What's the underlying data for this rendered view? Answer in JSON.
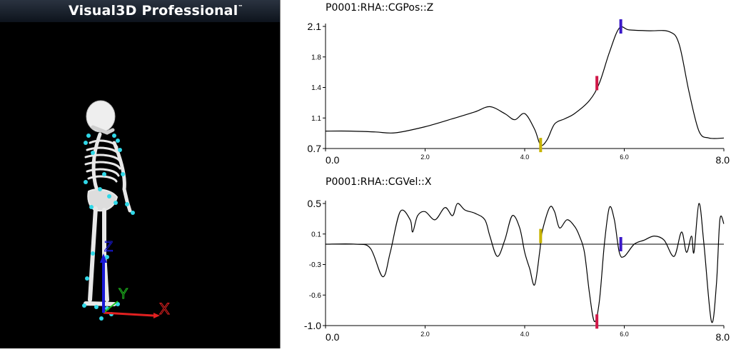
{
  "app": {
    "title": "Visual3D Professional",
    "trademark": "™"
  },
  "viewport": {
    "axis_labels": {
      "x": "X",
      "y": "Y",
      "z": "Z"
    },
    "colors": {
      "marker": "#30d8e8",
      "x_axis": "#e02020",
      "y_axis": "#20c020",
      "z_axis": "#1818d8",
      "bone": "#e8e8e8"
    }
  },
  "plots": [
    {
      "title": "P0001:RHA::CGPos::Z",
      "yticks": [
        "2.1",
        "1.8",
        "1.4",
        "1.1",
        "0.7"
      ],
      "xticks": [
        "0.0",
        "2.0",
        "4.0",
        "6.0",
        "8.0"
      ],
      "chart_data": {
        "type": "line",
        "title": "P0001:RHA::CGPos::Z",
        "xlim": [
          0,
          8
        ],
        "ylim": [
          0.7,
          2.1
        ],
        "x": [
          0,
          0.5,
          1.0,
          1.4,
          2.0,
          2.6,
          3.0,
          3.3,
          3.6,
          3.8,
          4.0,
          4.2,
          4.32,
          4.45,
          4.6,
          4.8,
          5.0,
          5.3,
          5.5,
          5.7,
          5.9,
          6.1,
          6.5,
          6.9,
          7.1,
          7.3,
          7.5,
          7.7,
          8.0
        ],
        "y": [
          0.9,
          0.9,
          0.89,
          0.88,
          0.95,
          1.05,
          1.12,
          1.18,
          1.1,
          1.03,
          1.1,
          0.92,
          0.74,
          0.8,
          0.98,
          1.04,
          1.1,
          1.25,
          1.45,
          1.8,
          2.08,
          2.06,
          2.05,
          2.04,
          1.9,
          1.35,
          0.9,
          0.82,
          0.82
        ],
        "events": [
          {
            "x": 4.32,
            "y": 0.74,
            "color": "#c8b400"
          },
          {
            "x": 5.45,
            "y": 1.45,
            "color": "#d01848"
          },
          {
            "x": 5.93,
            "y": 2.1,
            "color": "#3a18c8"
          }
        ]
      }
    },
    {
      "title": "P0001:RHA::CGVel::X",
      "yticks": [
        "0.5",
        "0.1",
        "-0.3",
        "-0.6",
        "-1.0"
      ],
      "xticks": [
        "0.0",
        "2.0",
        "4.0",
        "6.0",
        "8.0"
      ],
      "chart_data": {
        "type": "line",
        "title": "P0001:RHA::CGVel::X",
        "xlim": [
          0,
          8
        ],
        "ylim": [
          -1.0,
          0.5
        ],
        "zero_line": 0.0,
        "x": [
          0,
          0.6,
          0.9,
          1.15,
          1.3,
          1.5,
          1.7,
          1.75,
          1.85,
          2.0,
          2.2,
          2.4,
          2.55,
          2.65,
          2.8,
          3.0,
          3.2,
          3.3,
          3.45,
          3.6,
          3.75,
          3.9,
          4.0,
          4.1,
          4.2,
          4.3,
          4.35,
          4.5,
          4.6,
          4.7,
          4.85,
          5.0,
          5.1,
          5.2,
          5.3,
          5.4,
          5.5,
          5.6,
          5.7,
          5.8,
          5.9,
          6.0,
          6.2,
          6.4,
          6.6,
          6.8,
          7.0,
          7.15,
          7.25,
          7.35,
          7.4,
          7.5,
          7.6,
          7.75,
          7.85,
          7.92,
          8.0
        ],
        "y": [
          0.0,
          0.0,
          -0.05,
          -0.4,
          -0.1,
          0.4,
          0.3,
          0.15,
          0.35,
          0.4,
          0.3,
          0.45,
          0.35,
          0.5,
          0.42,
          0.38,
          0.3,
          0.1,
          -0.15,
          0.05,
          0.35,
          0.2,
          -0.1,
          -0.3,
          -0.5,
          -0.1,
          0.15,
          0.45,
          0.4,
          0.2,
          0.3,
          0.22,
          0.1,
          -0.1,
          -0.6,
          -0.95,
          -0.7,
          0.0,
          0.45,
          0.3,
          -0.1,
          -0.15,
          0.0,
          0.05,
          0.1,
          0.05,
          -0.15,
          0.15,
          -0.1,
          0.1,
          -0.1,
          0.5,
          0.0,
          -0.95,
          -0.5,
          0.3,
          0.25
        ],
        "events": [
          {
            "x": 4.32,
            "y": 0.1,
            "color": "#c8b400"
          },
          {
            "x": 5.45,
            "y": -0.95,
            "color": "#d01848"
          },
          {
            "x": 5.93,
            "y": 0.0,
            "color": "#3a18c8"
          }
        ]
      }
    }
  ]
}
